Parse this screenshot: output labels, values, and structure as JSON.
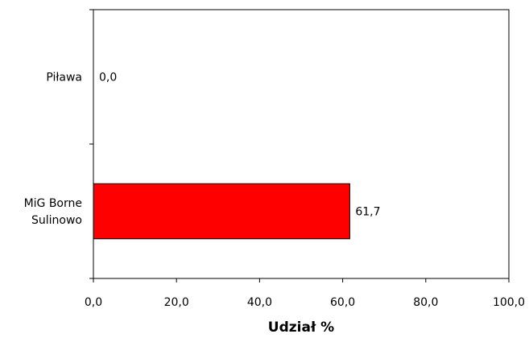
{
  "chart_data": {
    "type": "bar",
    "orientation": "horizontal",
    "categories": [
      "Piława",
      "MiG Borne Sulinowo"
    ],
    "category_lines": [
      [
        "Piława"
      ],
      [
        "MiG Borne",
        "Sulinowo"
      ]
    ],
    "values": [
      0.0,
      61.7
    ],
    "value_labels": [
      "0,0",
      "61,7"
    ],
    "xlabel": "Udział %",
    "ylabel": "",
    "title": "",
    "xlim": [
      0,
      100
    ],
    "xticks": [
      0,
      20,
      40,
      60,
      80,
      100
    ],
    "xtick_labels": [
      "0,0",
      "20,0",
      "40,0",
      "60,0",
      "80,0",
      "100,0"
    ],
    "grid": false,
    "legend": "none",
    "bar_color": "#ff0000",
    "bar_edge_color": "#000000"
  }
}
